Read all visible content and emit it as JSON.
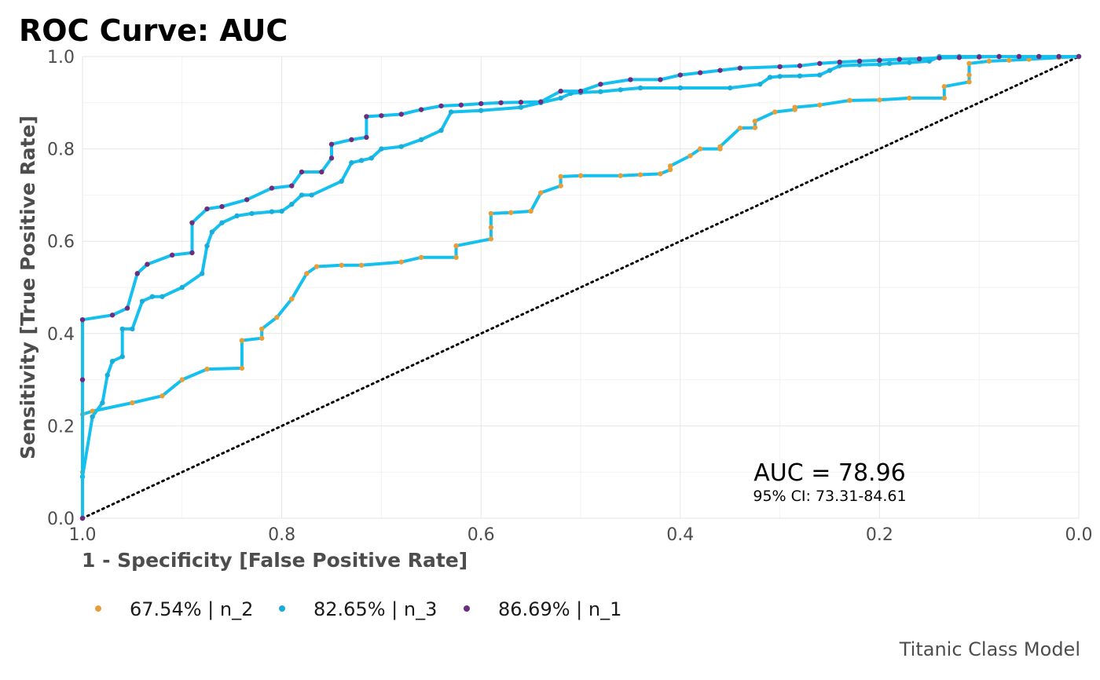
{
  "chart_data": {
    "type": "line",
    "title": "ROC Curve: AUC",
    "xlabel": "1 - Specificity [False Positive Rate]",
    "ylabel": "Sensitivity [True Positive Rate]",
    "xlim": [
      1.0,
      0.0
    ],
    "ylim": [
      0.0,
      1.0
    ],
    "x_reversed": true,
    "x_ticks": [
      "1.0",
      "0.8",
      "0.6",
      "0.4",
      "0.2",
      "0.0"
    ],
    "y_ticks": [
      "0.0",
      "0.2",
      "0.4",
      "0.6",
      "0.8",
      "1.0"
    ],
    "grid": true,
    "legend_position": "bottom",
    "caption": "Titanic Class Model",
    "annotation": {
      "auc": "AUC = 78.96",
      "ci": "95% CI: 73.31-84.61"
    },
    "reference_line": {
      "style": "dotted",
      "color": "#000000",
      "from": [
        1.0,
        0.0
      ],
      "to": [
        0.0,
        1.0
      ]
    },
    "line_color": "#15c0ee",
    "series": [
      {
        "name": "67.54% | n_2",
        "color": "#e69f38",
        "x": [
          1.0,
          1.0,
          1.0,
          0.99,
          0.95,
          0.92,
          0.9,
          0.875,
          0.84,
          0.84,
          0.82,
          0.82,
          0.805,
          0.79,
          0.79,
          0.775,
          0.765,
          0.74,
          0.72,
          0.68,
          0.66,
          0.625,
          0.625,
          0.59,
          0.59,
          0.59,
          0.57,
          0.55,
          0.54,
          0.52,
          0.52,
          0.5,
          0.46,
          0.44,
          0.42,
          0.41,
          0.41,
          0.39,
          0.38,
          0.36,
          0.36,
          0.34,
          0.325,
          0.325,
          0.305,
          0.285,
          0.285,
          0.26,
          0.23,
          0.2,
          0.17,
          0.135,
          0.135,
          0.11,
          0.11,
          0.11,
          0.09,
          0.07,
          0.05,
          0.02,
          0.0
        ],
        "y": [
          0.0,
          0.1,
          0.225,
          0.232,
          0.25,
          0.265,
          0.3,
          0.323,
          0.325,
          0.385,
          0.39,
          0.41,
          0.435,
          0.475,
          0.475,
          0.53,
          0.545,
          0.548,
          0.548,
          0.555,
          0.565,
          0.565,
          0.59,
          0.605,
          0.63,
          0.66,
          0.662,
          0.665,
          0.705,
          0.72,
          0.74,
          0.742,
          0.742,
          0.744,
          0.746,
          0.755,
          0.763,
          0.785,
          0.8,
          0.8,
          0.805,
          0.845,
          0.846,
          0.86,
          0.88,
          0.885,
          0.89,
          0.895,
          0.905,
          0.906,
          0.91,
          0.91,
          0.935,
          0.945,
          0.96,
          0.985,
          0.99,
          0.992,
          0.994,
          0.998,
          1.0
        ]
      },
      {
        "name": "82.65% | n_3",
        "color": "#1aadd9",
        "x": [
          1.0,
          1.0,
          0.99,
          0.98,
          0.975,
          0.97,
          0.96,
          0.96,
          0.95,
          0.94,
          0.93,
          0.92,
          0.9,
          0.88,
          0.875,
          0.87,
          0.86,
          0.845,
          0.83,
          0.81,
          0.8,
          0.79,
          0.78,
          0.77,
          0.74,
          0.73,
          0.72,
          0.71,
          0.7,
          0.68,
          0.66,
          0.64,
          0.63,
          0.6,
          0.56,
          0.54,
          0.52,
          0.51,
          0.5,
          0.48,
          0.46,
          0.44,
          0.4,
          0.35,
          0.32,
          0.31,
          0.3,
          0.28,
          0.26,
          0.25,
          0.24,
          0.22,
          0.2,
          0.19,
          0.17,
          0.15,
          0.14,
          0.12,
          0.1,
          0.08,
          0.06,
          0.04,
          0.02,
          0.0
        ],
        "y": [
          0.0,
          0.09,
          0.22,
          0.25,
          0.31,
          0.34,
          0.35,
          0.41,
          0.41,
          0.47,
          0.48,
          0.48,
          0.5,
          0.53,
          0.59,
          0.62,
          0.64,
          0.655,
          0.66,
          0.664,
          0.665,
          0.68,
          0.7,
          0.7,
          0.73,
          0.77,
          0.775,
          0.78,
          0.8,
          0.805,
          0.82,
          0.84,
          0.88,
          0.883,
          0.89,
          0.9,
          0.91,
          0.92,
          0.922,
          0.924,
          0.928,
          0.932,
          0.932,
          0.932,
          0.94,
          0.955,
          0.957,
          0.958,
          0.96,
          0.97,
          0.98,
          0.982,
          0.983,
          0.985,
          0.987,
          0.99,
          1.0,
          1.0,
          1.0,
          1.0,
          1.0,
          1.0,
          1.0,
          1.0
        ]
      },
      {
        "name": "86.69% | n_1",
        "color": "#6b2e7d",
        "x": [
          1.0,
          1.0,
          1.0,
          0.97,
          0.955,
          0.945,
          0.935,
          0.91,
          0.89,
          0.89,
          0.875,
          0.86,
          0.835,
          0.81,
          0.79,
          0.78,
          0.76,
          0.75,
          0.75,
          0.73,
          0.715,
          0.715,
          0.7,
          0.68,
          0.66,
          0.64,
          0.62,
          0.6,
          0.58,
          0.56,
          0.54,
          0.52,
          0.5,
          0.48,
          0.45,
          0.42,
          0.4,
          0.38,
          0.36,
          0.34,
          0.3,
          0.28,
          0.26,
          0.24,
          0.22,
          0.2,
          0.18,
          0.16,
          0.14,
          0.12,
          0.1,
          0.08,
          0.06,
          0.04,
          0.02,
          0.0
        ],
        "y": [
          0.0,
          0.3,
          0.43,
          0.44,
          0.455,
          0.53,
          0.55,
          0.57,
          0.575,
          0.64,
          0.67,
          0.675,
          0.69,
          0.715,
          0.72,
          0.75,
          0.75,
          0.78,
          0.81,
          0.82,
          0.825,
          0.87,
          0.872,
          0.875,
          0.885,
          0.893,
          0.895,
          0.898,
          0.9,
          0.901,
          0.902,
          0.925,
          0.925,
          0.94,
          0.95,
          0.95,
          0.96,
          0.965,
          0.97,
          0.975,
          0.978,
          0.98,
          0.985,
          0.988,
          0.99,
          0.992,
          0.994,
          0.995,
          0.997,
          0.998,
          0.999,
          1.0,
          1.0,
          1.0,
          1.0,
          1.0
        ]
      }
    ]
  }
}
